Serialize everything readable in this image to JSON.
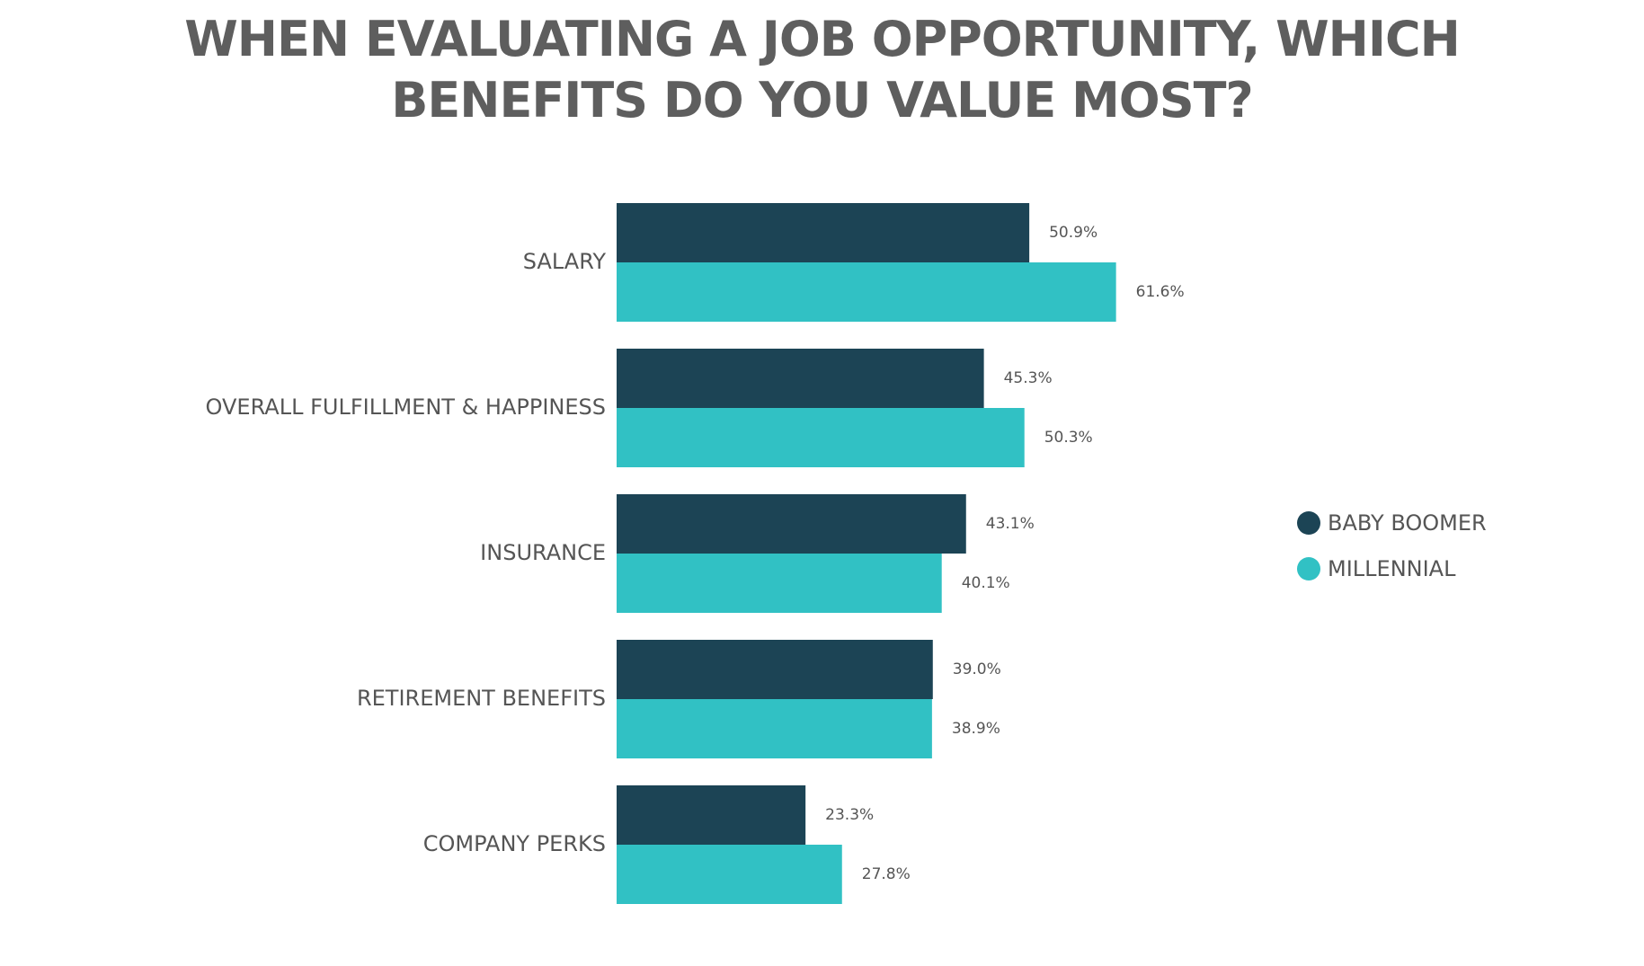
{
  "chart_data": {
    "type": "bar",
    "orientation": "horizontal",
    "title_lines": [
      "WHEN EVALUATING A JOB OPPORTUNITY, WHICH",
      "BENEFITS DO YOU VALUE MOST?"
    ],
    "categories": [
      "SALARY",
      "OVERALL FULFILLMENT & HAPPINESS",
      "INSURANCE",
      "RETIREMENT BENEFITS",
      "COMPANY PERKS"
    ],
    "series": [
      {
        "name": "BABY BOOMER",
        "color": "#1c4455",
        "values": [
          50.9,
          45.3,
          43.1,
          39.0,
          23.3
        ],
        "labels": [
          "50.9%",
          "45.3%",
          "43.1%",
          "39.0%",
          "23.3%"
        ]
      },
      {
        "name": "MILLENNIAL",
        "color": "#31c1c4",
        "values": [
          61.6,
          50.3,
          40.1,
          38.9,
          27.8
        ],
        "labels": [
          "61.6%",
          "50.3%",
          "40.1%",
          "38.9%",
          "27.8%"
        ]
      }
    ],
    "xlim": [
      0,
      100
    ],
    "unit": "%",
    "grid": false,
    "legend_position": "right"
  }
}
